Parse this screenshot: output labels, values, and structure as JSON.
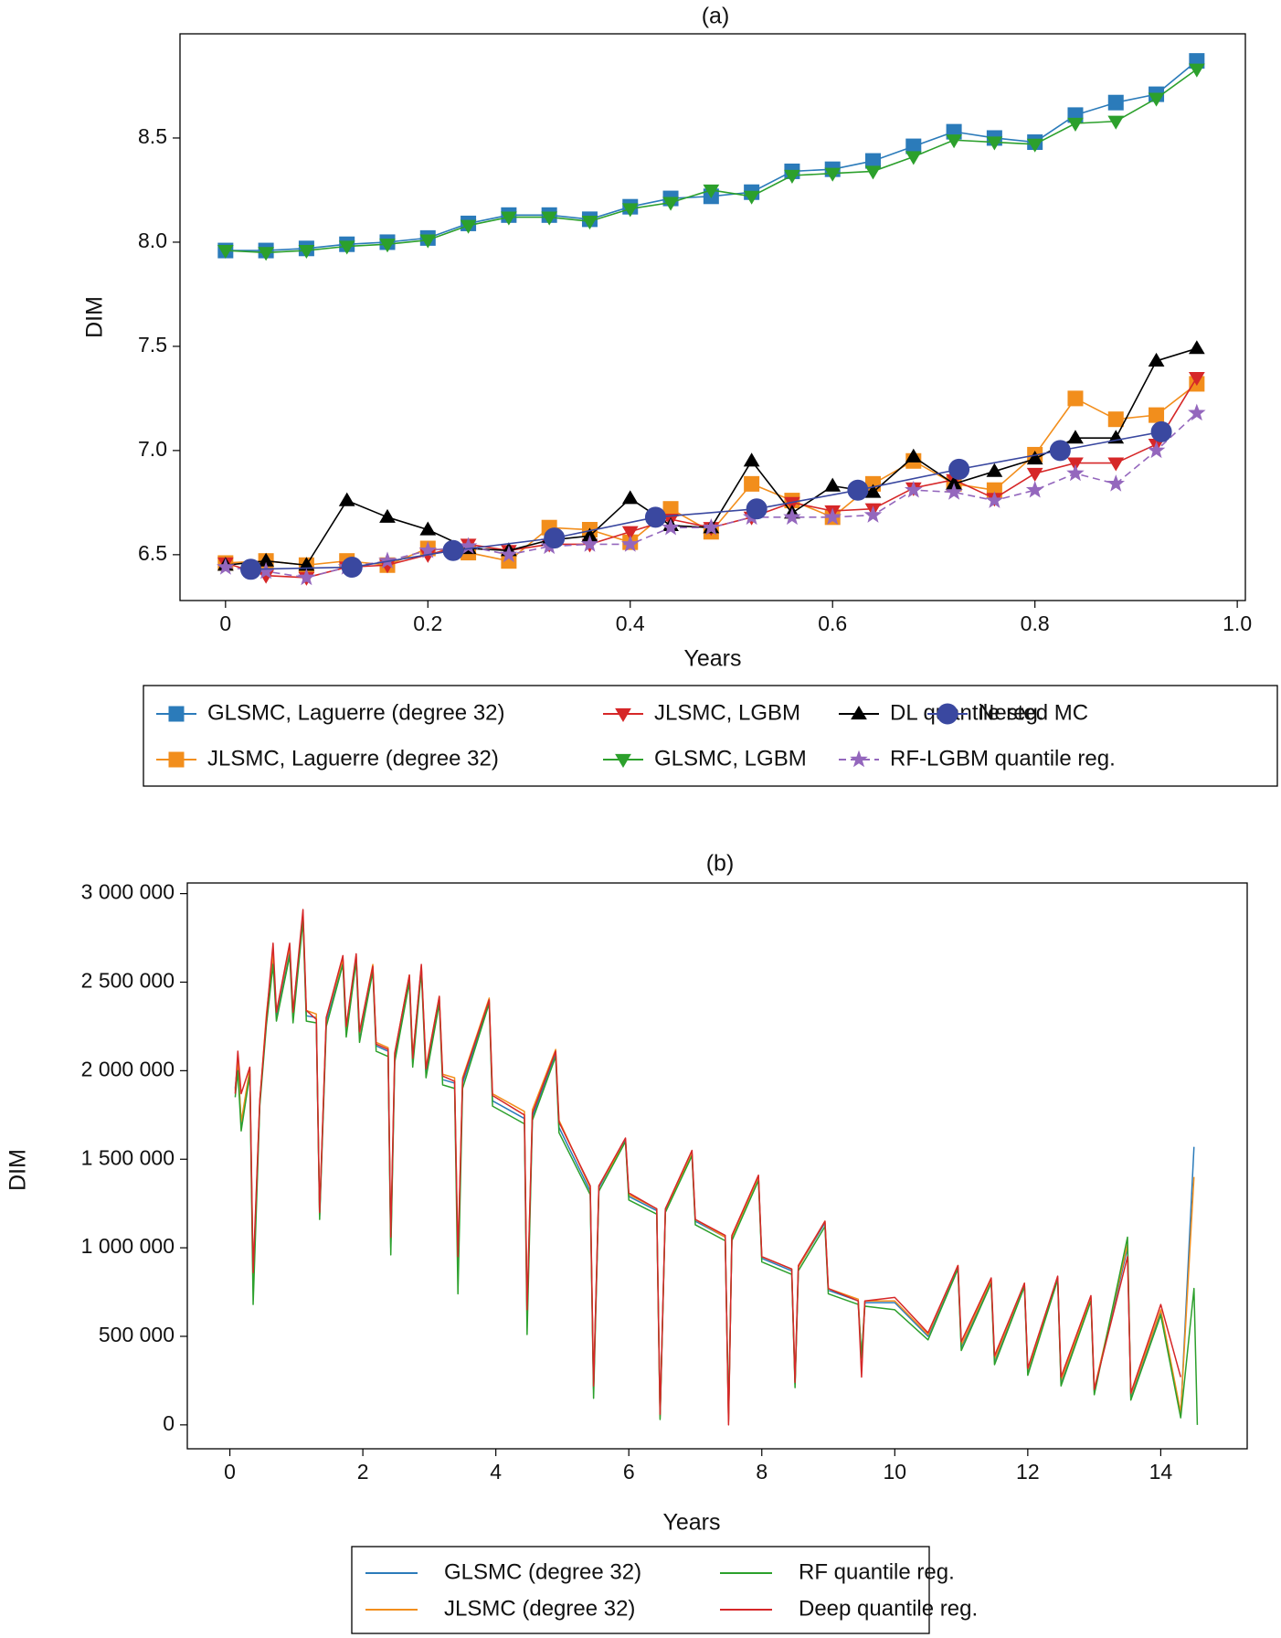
{
  "chart_data": [
    {
      "type": "line",
      "title": "(a)",
      "xlabel": "Years",
      "ylabel": "DIM",
      "xlim": [
        -0.045,
        1.008
      ],
      "ylim": [
        6.28,
        9.0
      ],
      "xticks": [
        0,
        0.2,
        0.4,
        0.6,
        0.8,
        {
          "value": 1,
          "label": "1.0"
        }
      ],
      "yticks": [
        6.5,
        {
          "value": 7,
          "label": "7.0"
        },
        7.5,
        {
          "value": 8,
          "label": "8.0"
        },
        8.5
      ],
      "x": [
        0,
        0.04,
        0.08,
        0.12,
        0.16,
        0.2,
        0.24,
        0.28,
        0.32,
        0.36,
        0.4,
        0.44,
        0.48,
        0.52,
        0.56,
        0.6,
        0.64,
        0.68,
        0.72,
        0.76,
        0.8,
        0.84,
        0.88,
        0.92,
        0.96
      ],
      "series": [
        {
          "name": "GLSMC, Laguerre (degree 32)",
          "color": "#2b7bba",
          "marker": "square",
          "values": [
            7.96,
            7.96,
            7.97,
            7.99,
            8.0,
            8.02,
            8.09,
            8.13,
            8.13,
            8.11,
            8.17,
            8.21,
            8.22,
            8.24,
            8.34,
            8.35,
            8.39,
            8.46,
            8.53,
            8.5,
            8.48,
            8.61,
            8.67,
            8.71,
            8.87
          ]
        },
        {
          "name": "JLSMC, Laguerre (degree 32)",
          "color": "#f28e1c",
          "marker": "square",
          "values": [
            6.46,
            6.47,
            6.45,
            6.47,
            6.45,
            6.53,
            6.51,
            6.47,
            6.63,
            6.62,
            6.56,
            6.72,
            6.61,
            6.84,
            6.76,
            6.68,
            6.84,
            6.95,
            6.84,
            6.81,
            6.98,
            7.25,
            7.15,
            7.17,
            7.32
          ]
        },
        {
          "name": "JLSMC, LGBM",
          "color": "#d62728",
          "marker": "down",
          "values": [
            6.46,
            6.4,
            6.39,
            6.44,
            6.45,
            6.5,
            6.55,
            6.52,
            6.55,
            6.55,
            6.61,
            6.67,
            6.63,
            6.68,
            6.75,
            6.71,
            6.72,
            6.82,
            6.86,
            6.77,
            6.89,
            6.94,
            6.94,
            7.03,
            7.35
          ]
        },
        {
          "name": "GLSMC, LGBM",
          "color": "#2ca02c",
          "marker": "down",
          "values": [
            7.96,
            7.95,
            7.96,
            7.98,
            7.99,
            8.01,
            8.08,
            8.12,
            8.12,
            8.1,
            8.16,
            8.19,
            8.25,
            8.22,
            8.32,
            8.33,
            8.34,
            8.41,
            8.49,
            8.48,
            8.47,
            8.57,
            8.58,
            8.69,
            8.83
          ]
        },
        {
          "name": "DL quantile reg.",
          "color": "#000000",
          "marker": "up",
          "values": [
            6.45,
            6.47,
            6.45,
            6.76,
            6.68,
            6.62,
            6.53,
            6.52,
            6.57,
            6.59,
            6.77,
            6.64,
            6.63,
            6.95,
            6.7,
            6.83,
            6.8,
            6.97,
            6.84,
            6.9,
            6.96,
            7.06,
            7.06,
            7.43,
            7.49
          ]
        },
        {
          "name": "RF-LGBM quantile reg.",
          "color": "#9467bd",
          "marker": "star",
          "linestyle": "dashed",
          "values": [
            6.44,
            6.42,
            6.39,
            6.44,
            6.47,
            6.52,
            6.54,
            6.5,
            6.54,
            6.55,
            6.55,
            6.63,
            6.63,
            6.68,
            6.68,
            6.68,
            6.69,
            6.81,
            6.8,
            6.76,
            6.81,
            6.89,
            6.84,
            7.0,
            7.18
          ]
        },
        {
          "name": "Nested MC",
          "color": "#3a48a0",
          "marker": "circle",
          "x": [
            0.025,
            0.125,
            0.225,
            0.325,
            0.425,
            0.525,
            0.625,
            0.725,
            0.825,
            0.925
          ],
          "values": [
            6.43,
            6.44,
            6.52,
            6.58,
            6.68,
            6.72,
            6.81,
            6.91,
            7.0,
            7.09
          ]
        }
      ]
    },
    {
      "type": "line",
      "title": "(b)",
      "xlabel": "Years",
      "ylabel": "DIM",
      "xlim": [
        -0.64,
        15.3
      ],
      "ylim": [
        -135000,
        3060000
      ],
      "xticks": [
        0,
        2,
        4,
        6,
        8,
        10,
        12,
        14
      ],
      "yticks": [
        0,
        {
          "value": 500000,
          "label": "500 000"
        },
        {
          "value": 1000000,
          "label": "1 000 000"
        },
        {
          "value": 1500000,
          "label": "1 500 000"
        },
        {
          "value": 2000000,
          "label": "2 000 000"
        },
        {
          "value": 2500000,
          "label": "2 500 000"
        },
        {
          "value": 3000000,
          "label": "3 000 000"
        }
      ],
      "x": [
        0.08,
        0.12,
        0.17,
        0.3,
        0.35,
        0.45,
        0.55,
        0.65,
        0.7,
        0.9,
        0.95,
        1.1,
        1.15,
        1.3,
        1.35,
        1.45,
        1.7,
        1.75,
        1.9,
        1.95,
        2.15,
        2.2,
        2.38,
        2.42,
        2.48,
        2.7,
        2.75,
        2.88,
        2.95,
        3.15,
        3.2,
        3.38,
        3.43,
        3.5,
        3.9,
        3.95,
        4.43,
        4.47,
        4.55,
        4.9,
        4.95,
        5.42,
        5.47,
        5.55,
        5.95,
        6.0,
        6.42,
        6.47,
        6.55,
        6.95,
        7.0,
        7.45,
        7.5,
        7.55,
        7.95,
        8.0,
        8.45,
        8.5,
        8.55,
        8.95,
        9.0,
        9.45,
        9.5,
        9.55,
        10.0,
        10.5,
        10.95,
        11.0,
        11.45,
        11.5,
        11.95,
        12.0,
        12.45,
        12.5,
        12.95,
        13.0,
        13.5,
        13.55,
        14.0,
        14.3,
        14.5,
        14.55
      ],
      "series": [
        {
          "name": "GLSMC (degree 32)",
          "color": "#2b7bba",
          "values": [
            1900000,
            2050000,
            1700000,
            2000000,
            800000,
            1820000,
            2290000,
            2650000,
            2310000,
            2680000,
            2300000,
            2870000,
            2310000,
            2300000,
            1180000,
            2280000,
            2620000,
            2220000,
            2640000,
            2190000,
            2580000,
            2140000,
            2110000,
            1000000,
            2080000,
            2520000,
            2050000,
            2580000,
            1990000,
            2400000,
            1950000,
            1930000,
            900000,
            1930000,
            2390000,
            1830000,
            1730000,
            600000,
            1740000,
            2100000,
            1680000,
            1320000,
            200000,
            1340000,
            1610000,
            1290000,
            1210000,
            50000,
            1220000,
            1530000,
            1150000,
            1060000,
            30000,
            1060000,
            1400000,
            940000,
            870000,
            230000,
            890000,
            1140000,
            760000,
            700000,
            380000,
            690000,
            690000,
            500000,
            890000,
            440000,
            810000,
            360000,
            790000,
            300000,
            830000,
            240000,
            710000,
            190000,
            1000000,
            160000,
            640000,
            60000,
            1570000,
            null
          ]
        },
        {
          "name": "JLSMC (degree 32)",
          "color": "#f28e1c",
          "values": [
            1890000,
            2060000,
            1710000,
            2010000,
            820000,
            1830000,
            2320000,
            2660000,
            2330000,
            2700000,
            2330000,
            2880000,
            2340000,
            2320000,
            1190000,
            2300000,
            2630000,
            2240000,
            2650000,
            2210000,
            2600000,
            2160000,
            2130000,
            1020000,
            2100000,
            2540000,
            2080000,
            2590000,
            2020000,
            2420000,
            1980000,
            1960000,
            920000,
            1960000,
            2410000,
            1870000,
            1770000,
            620000,
            1780000,
            2120000,
            1720000,
            1340000,
            210000,
            1350000,
            1600000,
            1300000,
            1220000,
            40000,
            1210000,
            1530000,
            1160000,
            1060000,
            20000,
            1060000,
            1400000,
            950000,
            880000,
            240000,
            890000,
            1150000,
            770000,
            710000,
            370000,
            700000,
            700000,
            510000,
            900000,
            450000,
            820000,
            370000,
            800000,
            310000,
            830000,
            250000,
            720000,
            200000,
            1020000,
            170000,
            650000,
            70000,
            1400000,
            null
          ]
        },
        {
          "name": "RF quantile reg.",
          "color": "#2ca02c",
          "values": [
            1850000,
            2000000,
            1660000,
            1980000,
            680000,
            1800000,
            2260000,
            2600000,
            2280000,
            2650000,
            2270000,
            2850000,
            2280000,
            2270000,
            1160000,
            2250000,
            2600000,
            2190000,
            2620000,
            2160000,
            2560000,
            2110000,
            2080000,
            960000,
            2050000,
            2500000,
            2020000,
            2560000,
            1960000,
            2380000,
            1920000,
            1900000,
            740000,
            1900000,
            2380000,
            1800000,
            1700000,
            510000,
            1720000,
            2080000,
            1650000,
            1300000,
            150000,
            1320000,
            1600000,
            1270000,
            1190000,
            30000,
            1200000,
            1520000,
            1130000,
            1040000,
            60000,
            1040000,
            1380000,
            920000,
            850000,
            210000,
            870000,
            1120000,
            740000,
            680000,
            380000,
            670000,
            650000,
            480000,
            880000,
            420000,
            800000,
            340000,
            780000,
            280000,
            820000,
            220000,
            700000,
            170000,
            1060000,
            140000,
            620000,
            40000,
            770000,
            0
          ]
        },
        {
          "name": "Deep quantile reg.",
          "color": "#d62728",
          "values": [
            1870000,
            2110000,
            1870000,
            2020000,
            860000,
            1830000,
            2300000,
            2720000,
            2330000,
            2720000,
            2330000,
            2910000,
            2340000,
            2290000,
            1200000,
            2300000,
            2650000,
            2250000,
            2660000,
            2220000,
            2590000,
            2150000,
            2120000,
            1060000,
            2100000,
            2540000,
            2070000,
            2600000,
            2010000,
            2420000,
            1970000,
            1940000,
            950000,
            1950000,
            2400000,
            1860000,
            1750000,
            650000,
            1760000,
            2110000,
            1710000,
            1350000,
            220000,
            1350000,
            1620000,
            1310000,
            1220000,
            60000,
            1220000,
            1550000,
            1160000,
            1070000,
            0,
            1070000,
            1410000,
            950000,
            880000,
            240000,
            900000,
            1150000,
            770000,
            700000,
            270000,
            700000,
            720000,
            520000,
            900000,
            470000,
            830000,
            390000,
            800000,
            320000,
            840000,
            270000,
            730000,
            200000,
            950000,
            180000,
            680000,
            270000,
            null,
            null
          ]
        }
      ]
    }
  ]
}
